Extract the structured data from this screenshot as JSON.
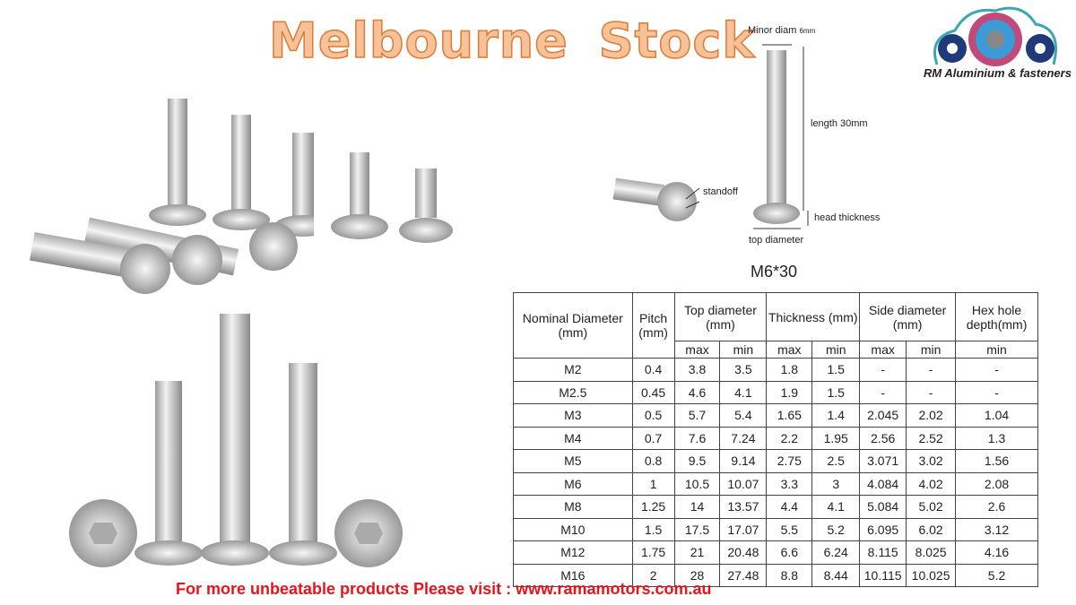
{
  "title": "Melbourne Stock",
  "logo": {
    "text": "RM Aluminium & fasteners"
  },
  "diagram": {
    "minor_diam": "Minor  diam",
    "minor_diam_value": "6mm",
    "length": "length  30mm",
    "standoff": "standoff",
    "head_thickness": "head thickness",
    "top_diameter": "top diameter",
    "model": "M6*30"
  },
  "table": {
    "headers": [
      "Nominal Diameter (mm)",
      "Pitch (mm)",
      "Top diameter (mm)",
      "Thickness (mm)",
      "Side diameter (mm)",
      "Hex hole depth(mm)"
    ],
    "subheaders": [
      "max",
      "min",
      "max",
      "min",
      "max",
      "min",
      "min"
    ],
    "rows": [
      [
        "M2",
        "0.4",
        "3.8",
        "3.5",
        "1.8",
        "1.5",
        "-",
        "-",
        "-"
      ],
      [
        "M2.5",
        "0.45",
        "4.6",
        "4.1",
        "1.9",
        "1.5",
        "-",
        "-",
        "-"
      ],
      [
        "M3",
        "0.5",
        "5.7",
        "5.4",
        "1.65",
        "1.4",
        "2.045",
        "2.02",
        "1.04"
      ],
      [
        "M4",
        "0.7",
        "7.6",
        "7.24",
        "2.2",
        "1.95",
        "2.56",
        "2.52",
        "1.3"
      ],
      [
        "M5",
        "0.8",
        "9.5",
        "9.14",
        "2.75",
        "2.5",
        "3.071",
        "3.02",
        "1.56"
      ],
      [
        "M6",
        "1",
        "10.5",
        "10.07",
        "3.3",
        "3",
        "4.084",
        "4.02",
        "2.08"
      ],
      [
        "M8",
        "1.25",
        "14",
        "13.57",
        "4.4",
        "4.1",
        "5.084",
        "5.02",
        "2.6"
      ],
      [
        "M10",
        "1.5",
        "17.5",
        "17.07",
        "5.5",
        "5.2",
        "6.095",
        "6.02",
        "3.12"
      ],
      [
        "M12",
        "1.75",
        "21",
        "20.48",
        "6.6",
        "6.24",
        "8.115",
        "8.025",
        "4.16"
      ],
      [
        "M16",
        "2",
        "28",
        "27.48",
        "8.8",
        "8.44",
        "10.115",
        "10.025",
        "5.2"
      ]
    ]
  },
  "footer": "For more unbeatable products Please visit : www.ramamotors.com.au",
  "colors": {
    "title_fill": "#f6c29a",
    "title_stroke": "#e07a33",
    "footer": "#e8141b"
  }
}
